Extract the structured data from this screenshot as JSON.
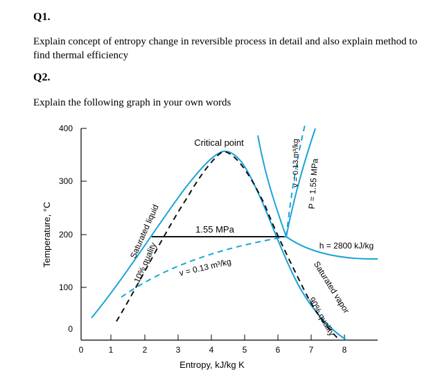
{
  "q1": {
    "label": "Q1.",
    "text": "Explain concept of entropy change in reversible process in detail and also explain method to find thermal efficiency"
  },
  "q2": {
    "label": "Q2.",
    "text": "Explain the following graph in your own words"
  },
  "chart_data": {
    "type": "line",
    "xlabel": "Entropy, kJ/kg K",
    "ylabel": "Temperature, °C",
    "xlim": [
      0,
      8
    ],
    "ylim": [
      0,
      400
    ],
    "xticks": [
      "0",
      "1",
      "2",
      "3",
      "4",
      "5",
      "6",
      "7",
      "8"
    ],
    "yticks": [
      "0",
      "100",
      "200",
      "300",
      "400"
    ],
    "annotations": {
      "critical_point": "Critical point",
      "pressure_line": "1.55 MPa",
      "saturated_liquid": "Saturated liquid",
      "saturated_vapor": "Saturated vapor",
      "quality_10": "10% quality",
      "quality_90": "90% quality",
      "v_line_dashed": "v = 0.13 m³/kg",
      "v_line_vertical": "v = 0.13 m³/kg",
      "p_line_vertical": "P = 1.55 MPa",
      "h_line": "h = 2800 kJ/kg"
    },
    "series": [
      {
        "style": "solid-blue",
        "points": [
          [
            0.35,
            20
          ],
          [
            1.2,
            110
          ],
          [
            2.2,
            190
          ],
          [
            3.4,
            290
          ],
          [
            4.4,
            354
          ],
          [
            5.2,
            320
          ],
          [
            6.2,
            220
          ],
          [
            7.0,
            140
          ],
          [
            8.0,
            80
          ]
        ]
      },
      {
        "style": "dashed-black",
        "points": [
          [
            1.1,
            10
          ],
          [
            2.1,
            110
          ],
          [
            3.0,
            260
          ],
          [
            4.4,
            354
          ],
          [
            6.0,
            190
          ],
          [
            7.6,
            10
          ]
        ]
      },
      {
        "style": "solid-black",
        "points": [
          [
            2.1,
            200
          ],
          [
            6.3,
            200
          ]
        ]
      },
      {
        "style": "dashed-blue",
        "points": [
          [
            1.2,
            25
          ],
          [
            3.2,
            140
          ],
          [
            6.3,
            200
          ],
          [
            6.8,
            345
          ]
        ]
      },
      {
        "style": "solid-blue",
        "points": [
          [
            6.3,
            200
          ],
          [
            6.6,
            290
          ],
          [
            6.9,
            365
          ]
        ]
      },
      {
        "style": "solid-blue",
        "points": [
          [
            6.3,
            200
          ],
          [
            7.0,
            160
          ],
          [
            8.4,
            155
          ]
        ]
      }
    ]
  }
}
